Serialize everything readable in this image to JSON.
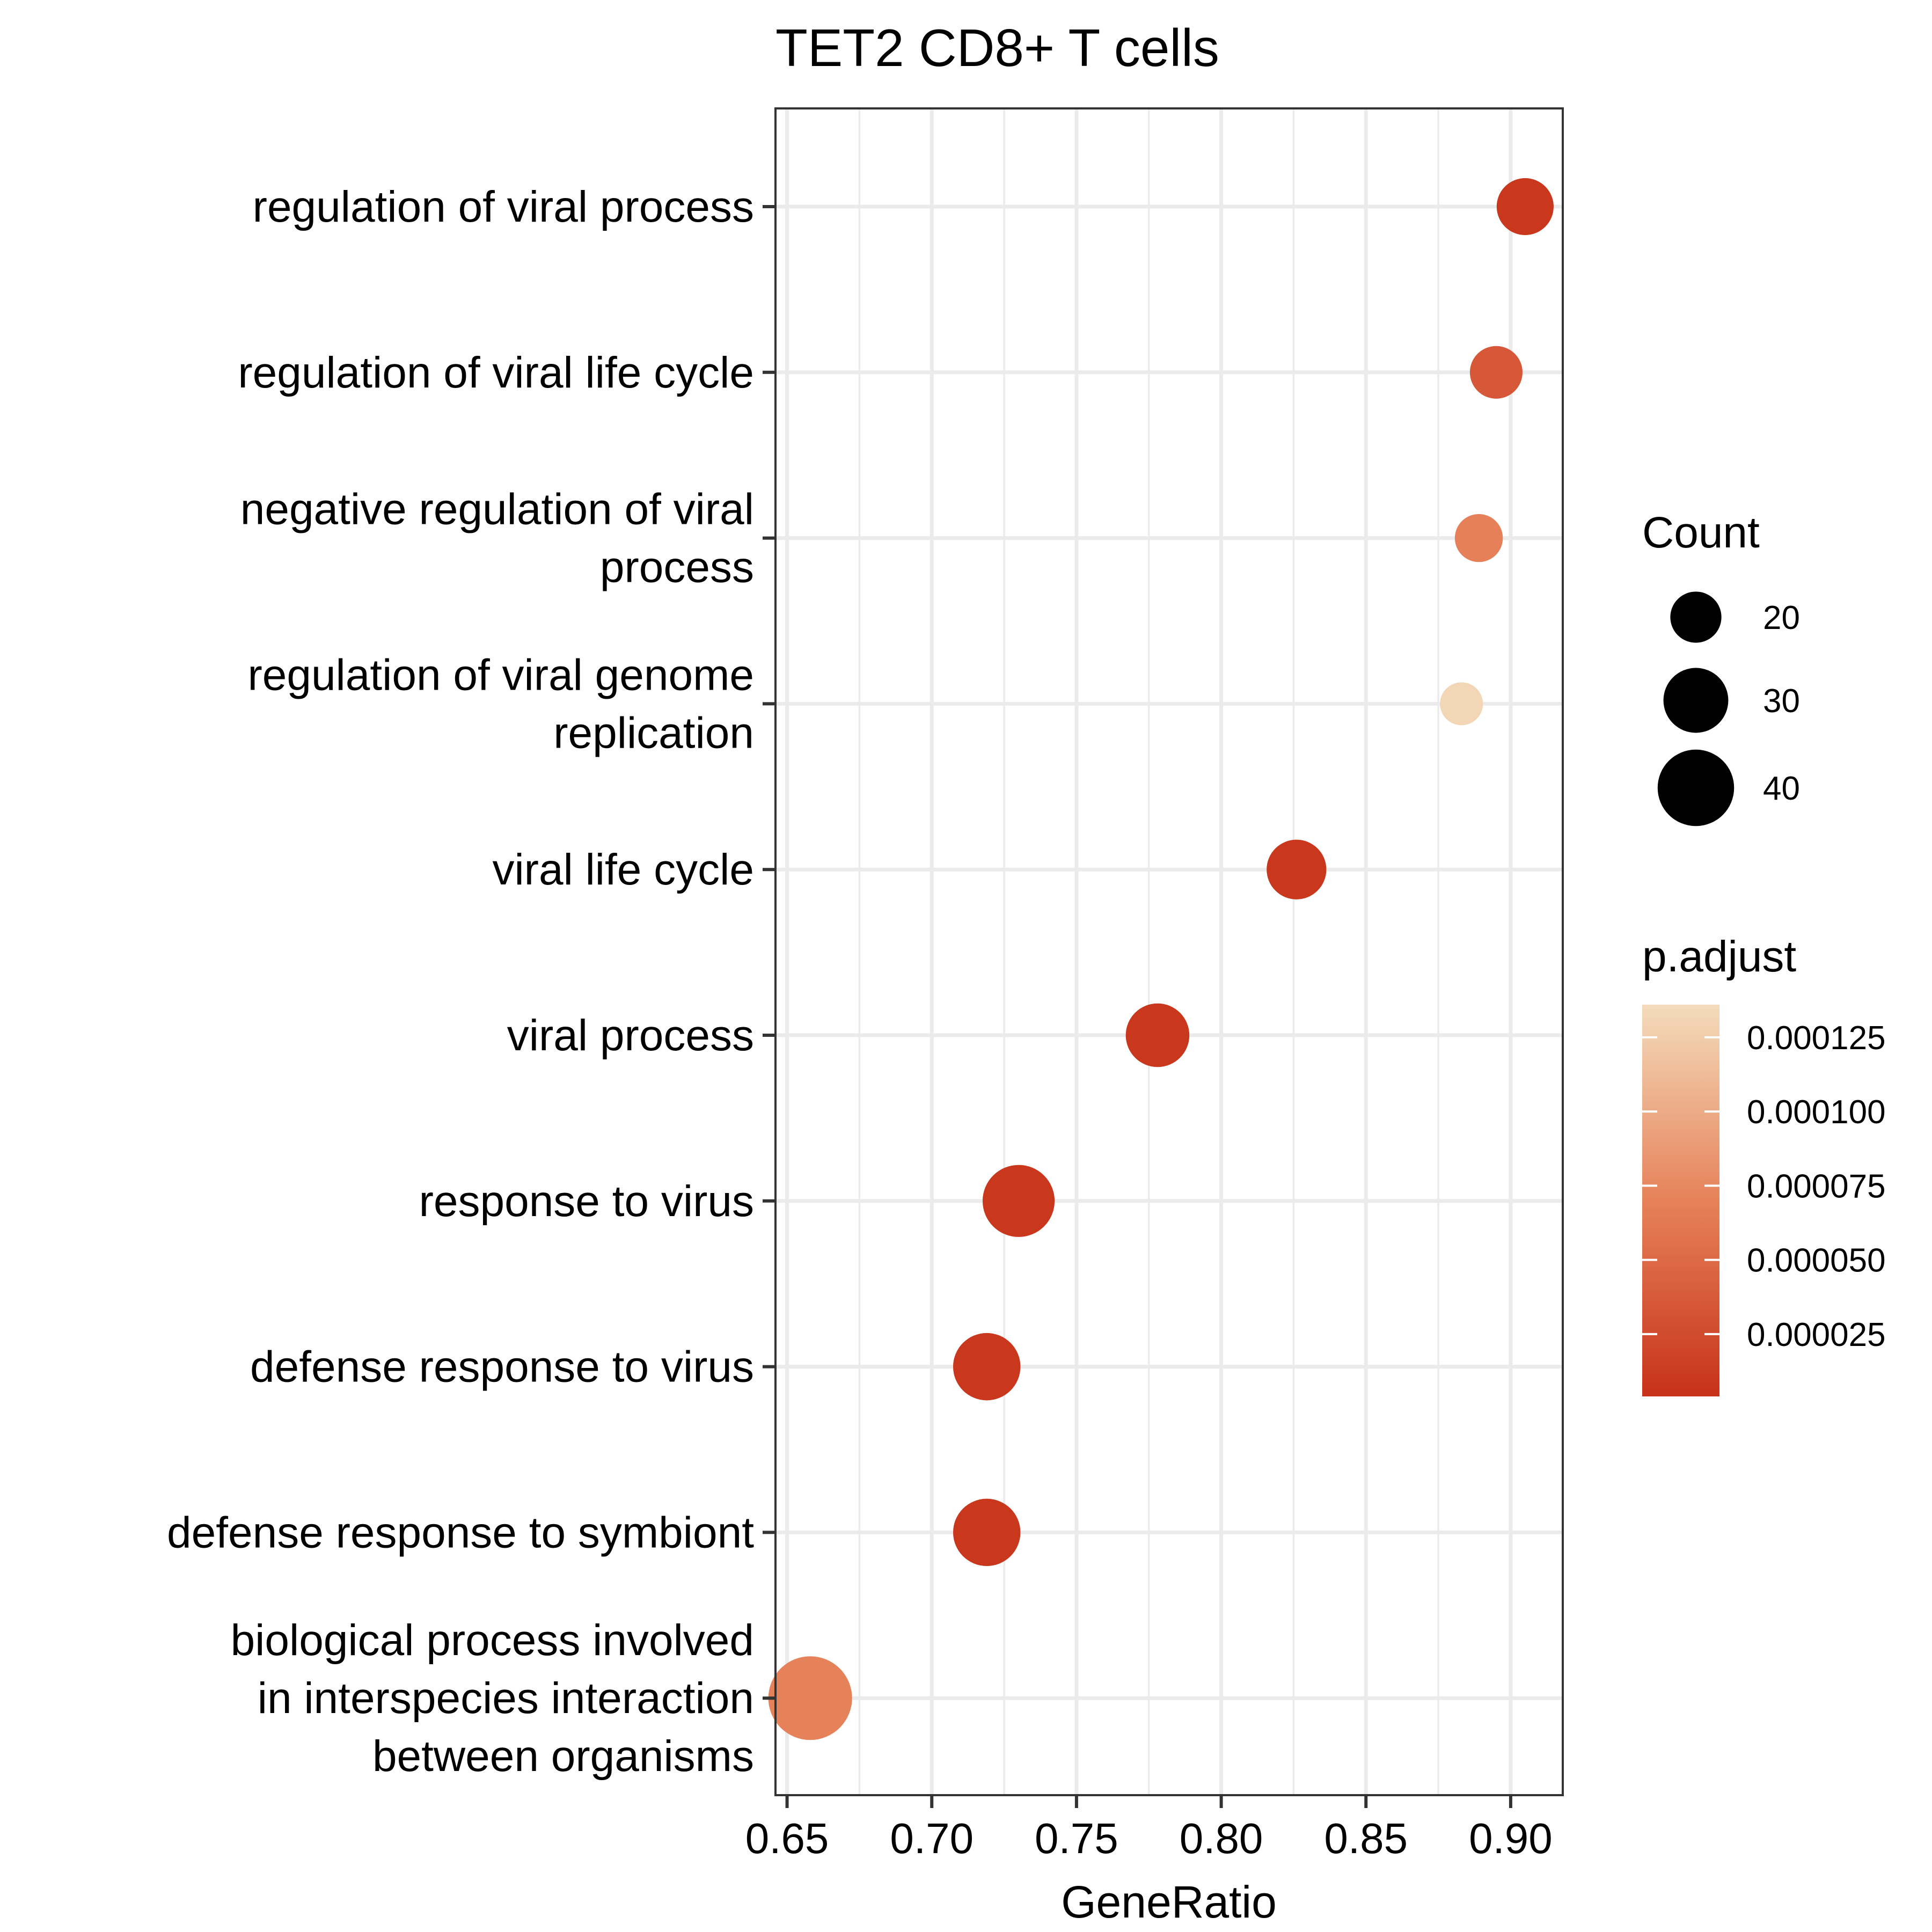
{
  "chart_data": {
    "type": "scatter",
    "title": "TET2 CD8+ T cells",
    "xlabel": "GeneRatio",
    "ylabel": "",
    "xlim": [
      0.646,
      0.918
    ],
    "x_ticks": [
      "0.65",
      "0.70",
      "0.75",
      "0.80",
      "0.85",
      "0.90"
    ],
    "grid": true,
    "legend_position": "right",
    "categories": [
      [
        "regulation of viral process"
      ],
      [
        "regulation of viral life cycle"
      ],
      [
        "negative regulation of viral",
        "process"
      ],
      [
        "regulation of viral genome",
        "replication"
      ],
      [
        "viral life cycle"
      ],
      [
        "viral process"
      ],
      [
        "response to virus"
      ],
      [
        "defense response to virus"
      ],
      [
        "defense response to symbiont"
      ],
      [
        "biological process involved",
        "in interspecies interaction",
        "between organisms"
      ]
    ],
    "points": [
      {
        "x": 0.905,
        "count": 24,
        "p_adjust": 8e-06
      },
      {
        "x": 0.895,
        "count": 21,
        "p_adjust": 3.5e-05
      },
      {
        "x": 0.889,
        "count": 18,
        "p_adjust": 6.8e-05
      },
      {
        "x": 0.883,
        "count": 15,
        "p_adjust": 0.000132
      },
      {
        "x": 0.826,
        "count": 26,
        "p_adjust": 8e-06
      },
      {
        "x": 0.778,
        "count": 29,
        "p_adjust": 8e-06
      },
      {
        "x": 0.73,
        "count": 36,
        "p_adjust": 8e-06
      },
      {
        "x": 0.719,
        "count": 32,
        "p_adjust": 8e-06
      },
      {
        "x": 0.719,
        "count": 32,
        "p_adjust": 8e-06
      },
      {
        "x": 0.658,
        "count": 47,
        "p_adjust": 7e-05
      }
    ],
    "size_legend": {
      "title": "Count",
      "values": [
        20,
        30,
        40
      ]
    },
    "color_legend": {
      "title": "p.adjust",
      "low_color": "#c73219",
      "high_color": "#f3dbbb",
      "min": 4e-06,
      "max": 0.000136,
      "ticks": [
        {
          "value": 2.5e-05,
          "label": "0.000025"
        },
        {
          "value": 5e-05,
          "label": "0.000050"
        },
        {
          "value": 7.5e-05,
          "label": "0.000075"
        },
        {
          "value": 0.0001,
          "label": "0.000100"
        },
        {
          "value": 0.000125,
          "label": "0.000125"
        }
      ]
    }
  }
}
